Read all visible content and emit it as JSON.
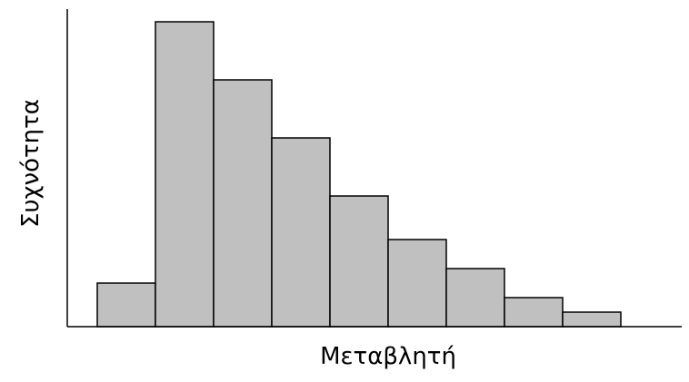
{
  "chart_data": {
    "type": "bar",
    "title": "",
    "xlabel": "Μεταβλητή",
    "ylabel": "Συχνότητα",
    "bins": 9,
    "values": [
      1.5,
      10.5,
      8.5,
      6.5,
      4.5,
      3.0,
      2.0,
      1.0,
      0.5
    ],
    "ylim": [
      0,
      10.5
    ],
    "grid": false,
    "legend": "none",
    "colors": {
      "bar_fill": "#c0c0c0",
      "bar_stroke": "#000000",
      "axis": "#000000"
    }
  }
}
